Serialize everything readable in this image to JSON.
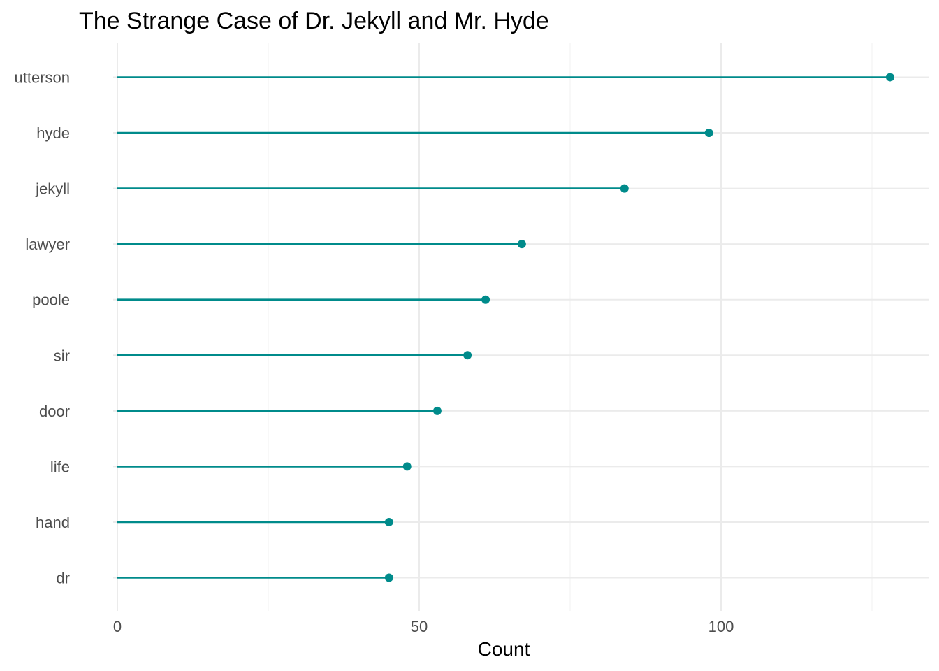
{
  "chart_data": {
    "type": "lollipop",
    "title": "The Strange Case of Dr. Jekyll and Mr. Hyde",
    "xlabel": "Count",
    "ylabel": "",
    "xlim": [
      0,
      128
    ],
    "xticks": [
      0,
      50,
      100
    ],
    "minor_xticks": [
      25,
      75,
      125
    ],
    "color": "#008b8b",
    "categories": [
      "utterson",
      "hyde",
      "jekyll",
      "lawyer",
      "poole",
      "sir",
      "door",
      "life",
      "hand",
      "dr"
    ],
    "values": [
      128,
      98,
      84,
      67,
      61,
      58,
      53,
      48,
      45,
      45
    ]
  }
}
